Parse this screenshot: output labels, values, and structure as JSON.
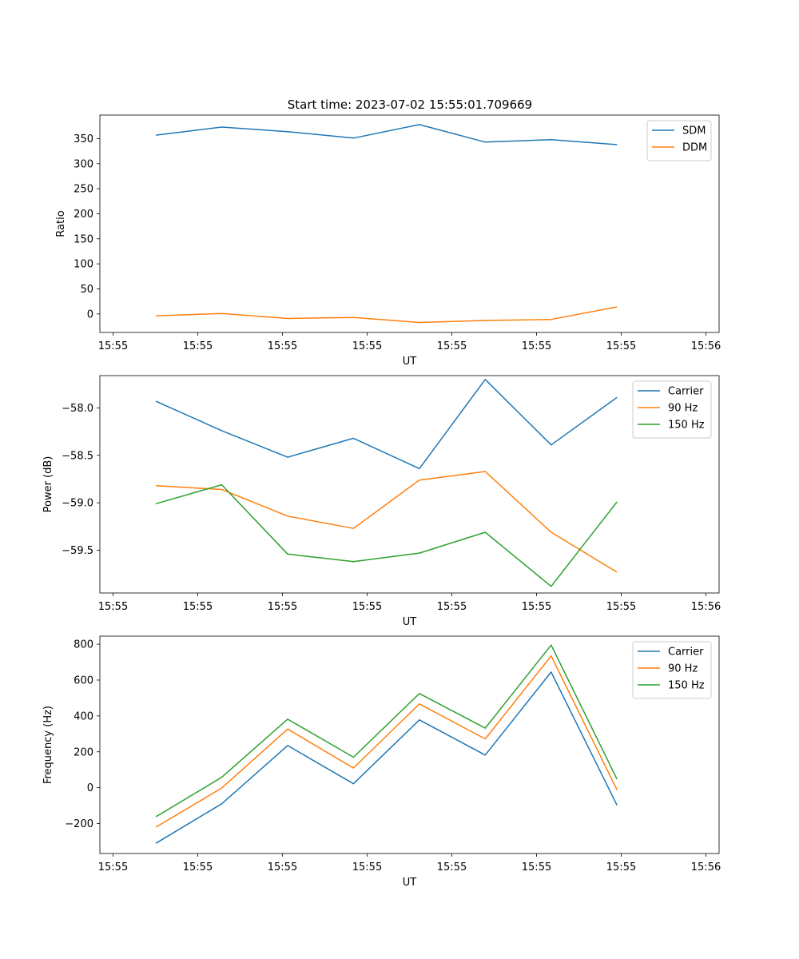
{
  "figure_title": "Start time: 2023-07-02 15:55:01.709669",
  "colors": {
    "blue": "#1f77b4",
    "orange": "#ff7f0e",
    "green": "#2ca02c",
    "axis": "#000000"
  },
  "chart_data": [
    {
      "type": "line",
      "title": "Start time: 2023-07-02 15:55:01.709669",
      "xlabel": "UT",
      "ylabel": "Ratio",
      "x_tick_labels": [
        "15:55",
        "15:55",
        "15:55",
        "15:55",
        "15:55",
        "15:55",
        "15:55",
        "15:56"
      ],
      "y_ticks": [
        0,
        50,
        100,
        150,
        200,
        250,
        300,
        350
      ],
      "y_tick_labels": [
        "0",
        "50",
        "100",
        "150",
        "200",
        "250",
        "300",
        "350"
      ],
      "ylim": [
        -37,
        397
      ],
      "xlim": [
        -0.85,
        8.55
      ],
      "x": [
        0,
        1,
        2,
        3,
        4,
        5,
        6,
        7
      ],
      "legend_position": "top-right",
      "series": [
        {
          "name": "SDM",
          "color": "#1f77b4",
          "values": [
            357,
            373,
            364,
            351,
            378,
            343,
            348,
            338
          ]
        },
        {
          "name": "DDM",
          "color": "#ff7f0e",
          "values": [
            -4,
            1,
            -9,
            -7,
            -17,
            -13,
            -11,
            14
          ]
        }
      ]
    },
    {
      "type": "line",
      "xlabel": "UT",
      "ylabel": "Power (dB)",
      "x_tick_labels": [
        "15:55",
        "15:55",
        "15:55",
        "15:55",
        "15:55",
        "15:55",
        "15:55",
        "15:56"
      ],
      "y_ticks": [
        -58.0,
        -58.5,
        -59.0,
        -59.5
      ],
      "y_tick_labels": [
        "−58.0",
        "−58.5",
        "−59.0",
        "−59.5"
      ],
      "ylim": [
        -59.95,
        -57.66
      ],
      "xlim": [
        -0.85,
        8.55
      ],
      "x": [
        0,
        1,
        2,
        3,
        4,
        5,
        6,
        7
      ],
      "legend_position": "top-right",
      "series": [
        {
          "name": "Carrier",
          "color": "#1f77b4",
          "values": [
            -57.93,
            -58.24,
            -58.52,
            -58.32,
            -58.64,
            -57.7,
            -58.39,
            -57.89
          ]
        },
        {
          "name": "90 Hz",
          "color": "#ff7f0e",
          "values": [
            -58.82,
            -58.86,
            -59.14,
            -59.27,
            -58.76,
            -58.67,
            -59.31,
            -59.73
          ]
        },
        {
          "name": "150 Hz",
          "color": "#2ca02c",
          "values": [
            -59.01,
            -58.81,
            -59.54,
            -59.62,
            -59.53,
            -59.31,
            -59.88,
            -58.99
          ]
        }
      ]
    },
    {
      "type": "line",
      "xlabel": "UT",
      "ylabel": "Frequency (Hz)",
      "x_tick_labels": [
        "15:55",
        "15:55",
        "15:55",
        "15:55",
        "15:55",
        "15:55",
        "15:55",
        "15:56"
      ],
      "y_ticks": [
        -200,
        0,
        200,
        400,
        600,
        800
      ],
      "y_tick_labels": [
        "−200",
        "0",
        "200",
        "400",
        "600",
        "800"
      ],
      "ylim": [
        -367,
        845
      ],
      "xlim": [
        -0.85,
        8.55
      ],
      "x": [
        0,
        1,
        2,
        3,
        4,
        5,
        6,
        7
      ],
      "legend_position": "top-right",
      "series": [
        {
          "name": "Carrier",
          "color": "#1f77b4",
          "values": [
            -310,
            -90,
            235,
            22,
            378,
            182,
            645,
            -98
          ]
        },
        {
          "name": "90 Hz",
          "color": "#ff7f0e",
          "values": [
            -220,
            -2,
            327,
            110,
            467,
            272,
            735,
            -12
          ]
        },
        {
          "name": "150 Hz",
          "color": "#2ca02c",
          "values": [
            -162,
            58,
            382,
            170,
            525,
            332,
            795,
            48
          ]
        }
      ]
    }
  ]
}
